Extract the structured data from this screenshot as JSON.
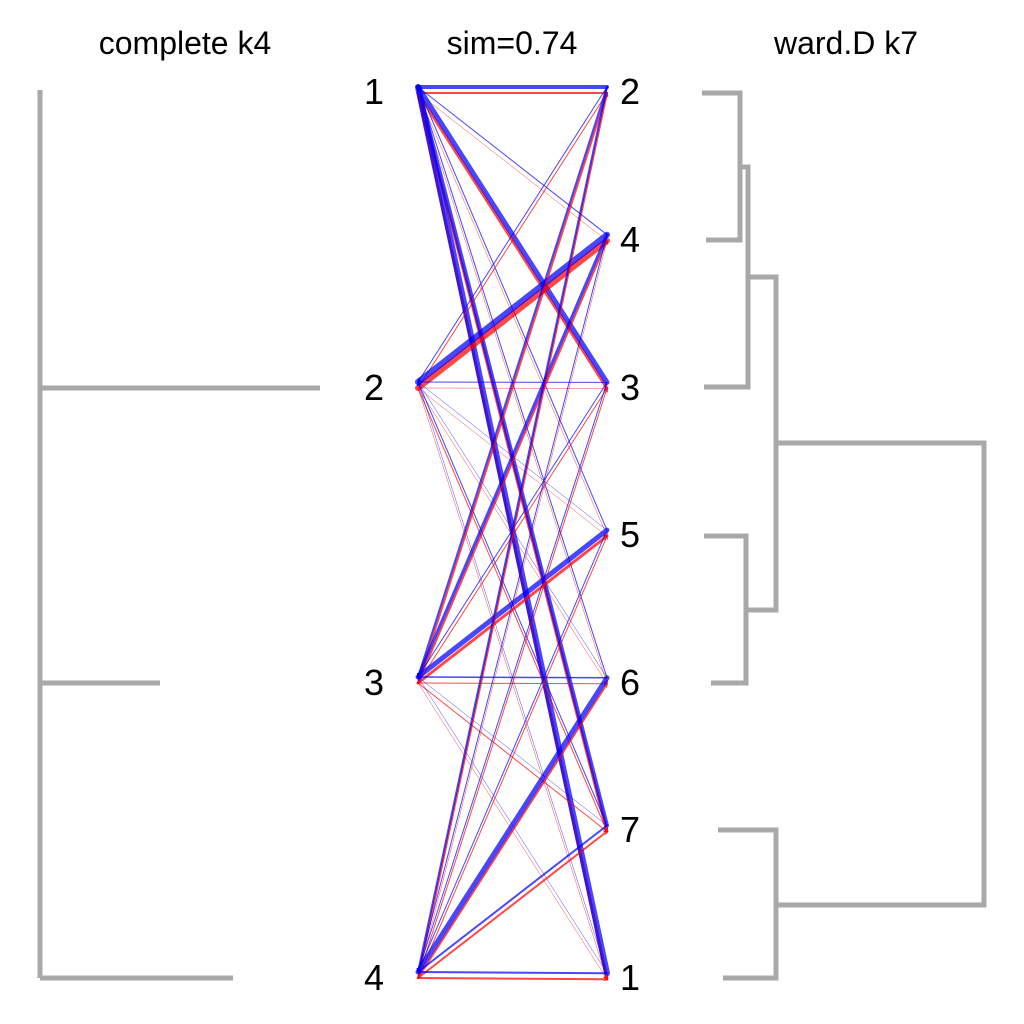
{
  "titles": {
    "left": "complete k4",
    "center": "sim=0.74",
    "right": "ward.D k7"
  },
  "colors": {
    "dendrogram": "#a8a8a8",
    "forward": "#ff0000",
    "backward": "#0000ff"
  },
  "left_clusters": [
    "1",
    "2",
    "3",
    "4"
  ],
  "right_clusters": [
    "2",
    "4",
    "3",
    "5",
    "6",
    "7",
    "1"
  ],
  "flows": [
    {
      "from": "1",
      "to": "2",
      "red": 2,
      "blue": 4
    },
    {
      "from": "1",
      "to": "4",
      "red": 0.5,
      "blue": 1
    },
    {
      "from": "1",
      "to": "3",
      "red": 3,
      "blue": 5
    },
    {
      "from": "1",
      "to": "5",
      "red": 0.5,
      "blue": 1
    },
    {
      "from": "1",
      "to": "6",
      "red": 0.5,
      "blue": 1
    },
    {
      "from": "1",
      "to": "7",
      "red": 3,
      "blue": 4
    },
    {
      "from": "1",
      "to": "1",
      "red": 3,
      "blue": 6
    },
    {
      "from": "2",
      "to": "2",
      "red": 1,
      "blue": 1
    },
    {
      "from": "2",
      "to": "4",
      "red": 6,
      "blue": 6
    },
    {
      "from": "2",
      "to": "3",
      "red": 0.5,
      "blue": 1
    },
    {
      "from": "2",
      "to": "5",
      "red": 0.5,
      "blue": 0.5
    },
    {
      "from": "2",
      "to": "6",
      "red": 0.5,
      "blue": 0.5
    },
    {
      "from": "2",
      "to": "7",
      "red": 1,
      "blue": 1
    },
    {
      "from": "2",
      "to": "1",
      "red": 0.5,
      "blue": 0.5
    },
    {
      "from": "3",
      "to": "2",
      "red": 2,
      "blue": 2
    },
    {
      "from": "3",
      "to": "4",
      "red": 2,
      "blue": 3
    },
    {
      "from": "3",
      "to": "3",
      "red": 1,
      "blue": 1
    },
    {
      "from": "3",
      "to": "5",
      "red": 3,
      "blue": 5
    },
    {
      "from": "3",
      "to": "6",
      "red": 1,
      "blue": 1.5
    },
    {
      "from": "3",
      "to": "7",
      "red": 1,
      "blue": 0.5
    },
    {
      "from": "3",
      "to": "1",
      "red": 0.5,
      "blue": 0.5
    },
    {
      "from": "4",
      "to": "2",
      "red": 2,
      "blue": 2
    },
    {
      "from": "4",
      "to": "4",
      "red": 0.5,
      "blue": 1
    },
    {
      "from": "4",
      "to": "3",
      "red": 1,
      "blue": 1
    },
    {
      "from": "4",
      "to": "5",
      "red": 1,
      "blue": 1
    },
    {
      "from": "4",
      "to": "6",
      "red": 2,
      "blue": 5
    },
    {
      "from": "4",
      "to": "7",
      "red": 2,
      "blue": 2
    },
    {
      "from": "4",
      "to": "1",
      "red": 2,
      "blue": 2
    }
  ]
}
